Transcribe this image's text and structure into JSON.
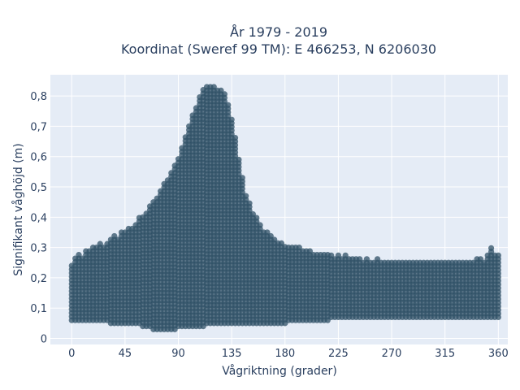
{
  "chart_data": {
    "type": "scatter",
    "title_line1": "År 1979 - 2019",
    "title_line2": "Koordinat (Sweref 99 TM): E 466253, N 6206030",
    "xlabel": "Vågriktning (grader)",
    "ylabel": "Signifikant våghöjd (m)",
    "xlim": [
      -18,
      368
    ],
    "ylim": [
      -0.02,
      0.87
    ],
    "x_ticks": [
      0,
      45,
      90,
      135,
      180,
      225,
      270,
      315,
      360
    ],
    "x_tick_labels": [
      "0",
      "45",
      "90",
      "135",
      "180",
      "225",
      "270",
      "315",
      "360"
    ],
    "y_ticks": [
      0,
      0.1,
      0.2,
      0.3,
      0.4,
      0.5,
      0.6,
      0.7,
      0.8
    ],
    "y_tick_labels": [
      "0",
      "0,1",
      "0,2",
      "0,3",
      "0,4",
      "0,5",
      "0,6",
      "0,7",
      "0,8"
    ],
    "marker_color": "#2f5066",
    "plot_bg": "#e5ecf6",
    "grid": true,
    "series": [
      {
        "x": [
          0,
          3,
          6,
          9,
          12,
          15,
          18,
          21,
          24,
          27,
          30,
          33,
          36,
          39,
          42,
          45,
          48,
          51,
          54,
          57,
          60,
          63,
          66,
          69,
          72,
          75,
          78,
          81,
          84,
          87,
          90,
          93,
          96,
          99,
          102,
          105,
          108,
          111,
          114,
          117,
          120,
          123,
          126,
          129,
          132,
          135,
          138,
          141,
          144,
          147,
          150,
          153,
          156,
          159,
          162,
          165,
          168,
          171,
          174,
          177,
          180,
          183,
          186,
          189,
          192,
          195,
          198,
          201,
          204,
          207,
          210,
          213,
          216,
          219,
          222,
          225,
          228,
          231,
          234,
          237,
          240,
          243,
          246,
          249,
          252,
          255,
          258,
          261,
          264,
          267,
          270,
          273,
          276,
          279,
          282,
          285,
          288,
          291,
          294,
          297,
          300,
          303,
          306,
          309,
          312,
          315,
          318,
          321,
          324,
          327,
          330,
          333,
          336,
          339,
          342,
          345,
          348,
          351,
          354,
          357,
          360
        ],
        "y_max": [
          0.25,
          0.27,
          0.28,
          0.27,
          0.29,
          0.29,
          0.3,
          0.31,
          0.32,
          0.3,
          0.32,
          0.33,
          0.34,
          0.33,
          0.35,
          0.36,
          0.37,
          0.37,
          0.38,
          0.4,
          0.41,
          0.42,
          0.44,
          0.46,
          0.47,
          0.49,
          0.51,
          0.53,
          0.55,
          0.57,
          0.6,
          0.63,
          0.67,
          0.7,
          0.74,
          0.77,
          0.8,
          0.82,
          0.83,
          0.83,
          0.83,
          0.82,
          0.82,
          0.81,
          0.78,
          0.73,
          0.67,
          0.6,
          0.53,
          0.48,
          0.45,
          0.42,
          0.4,
          0.38,
          0.36,
          0.35,
          0.34,
          0.33,
          0.32,
          0.32,
          0.31,
          0.31,
          0.3,
          0.3,
          0.3,
          0.29,
          0.29,
          0.29,
          0.28,
          0.28,
          0.28,
          0.28,
          0.28,
          0.28,
          0.27,
          0.28,
          0.27,
          0.28,
          0.27,
          0.27,
          0.27,
          0.27,
          0.26,
          0.27,
          0.26,
          0.26,
          0.27,
          0.26,
          0.26,
          0.26,
          0.26,
          0.26,
          0.26,
          0.26,
          0.25,
          0.26,
          0.26,
          0.25,
          0.26,
          0.25,
          0.26,
          0.25,
          0.26,
          0.25,
          0.25,
          0.26,
          0.25,
          0.25,
          0.25,
          0.26,
          0.25,
          0.25,
          0.26,
          0.26,
          0.27,
          0.27,
          0.26,
          0.28,
          0.3,
          0.28,
          0.28
        ],
        "y_min": [
          0.06,
          0.06,
          0.06,
          0.06,
          0.06,
          0.06,
          0.06,
          0.06,
          0.06,
          0.06,
          0.06,
          0.05,
          0.05,
          0.05,
          0.05,
          0.05,
          0.05,
          0.05,
          0.05,
          0.05,
          0.04,
          0.04,
          0.04,
          0.03,
          0.03,
          0.03,
          0.03,
          0.03,
          0.03,
          0.03,
          0.04,
          0.04,
          0.04,
          0.04,
          0.04,
          0.04,
          0.04,
          0.04,
          0.05,
          0.05,
          0.05,
          0.05,
          0.05,
          0.05,
          0.05,
          0.05,
          0.05,
          0.05,
          0.05,
          0.05,
          0.05,
          0.05,
          0.05,
          0.05,
          0.05,
          0.05,
          0.05,
          0.05,
          0.05,
          0.05,
          0.05,
          0.06,
          0.06,
          0.06,
          0.06,
          0.06,
          0.06,
          0.06,
          0.06,
          0.06,
          0.06,
          0.06,
          0.06,
          0.07,
          0.07,
          0.07,
          0.07,
          0.07,
          0.07,
          0.07,
          0.07,
          0.07,
          0.07,
          0.07,
          0.07,
          0.07,
          0.07,
          0.07,
          0.07,
          0.07,
          0.07,
          0.07,
          0.07,
          0.07,
          0.07,
          0.07,
          0.07,
          0.07,
          0.07,
          0.07,
          0.07,
          0.07,
          0.07,
          0.07,
          0.07,
          0.07,
          0.07,
          0.07,
          0.07,
          0.07,
          0.07,
          0.07,
          0.07,
          0.07,
          0.07,
          0.07,
          0.07,
          0.07,
          0.07,
          0.07,
          0.07
        ]
      }
    ]
  }
}
